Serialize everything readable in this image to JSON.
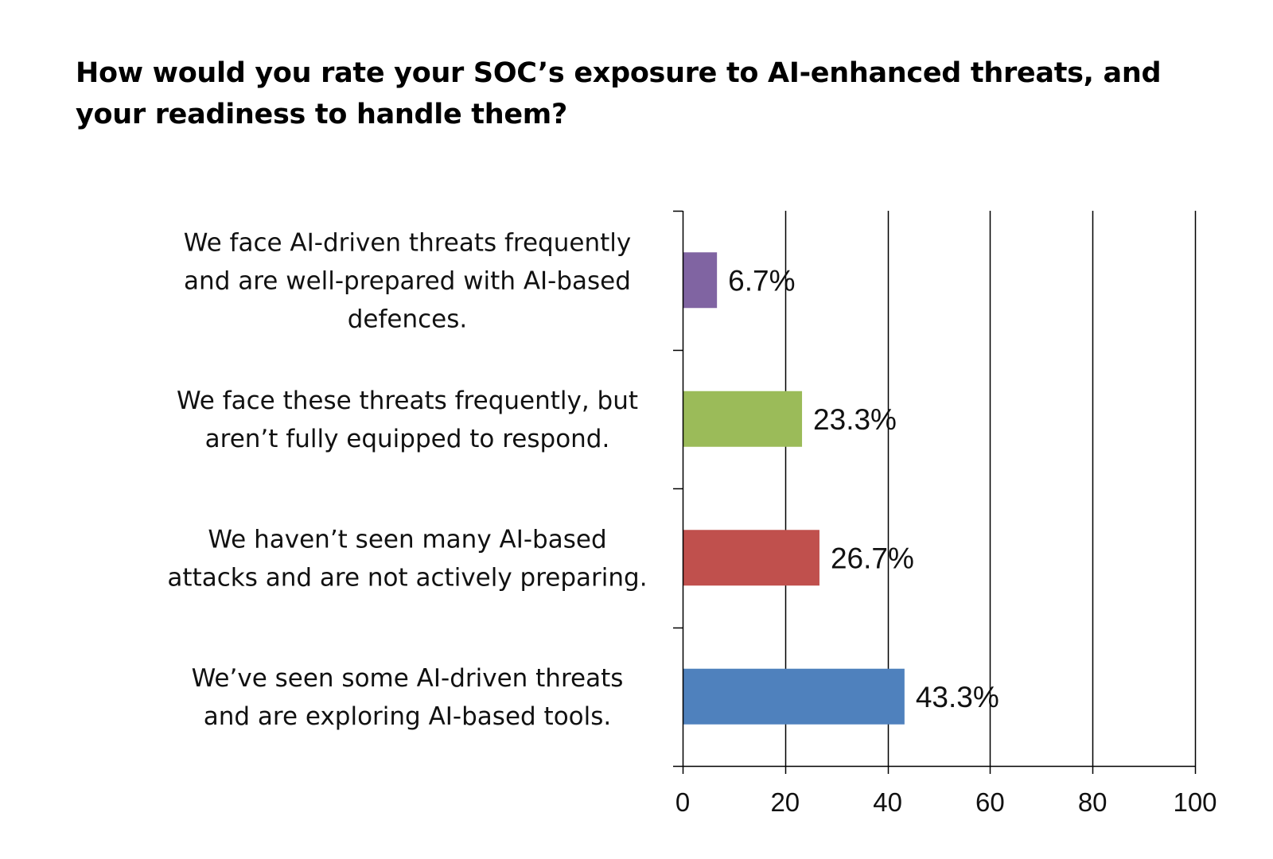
{
  "chart_data": {
    "type": "bar",
    "orientation": "horizontal",
    "title": "How would you rate your SOC’s exposure to AI-enhanced threats, and your readiness to handle them?",
    "categories": [
      [
        "We face AI-driven threats frequently",
        "and are well-prepared with AI-based",
        "defences."
      ],
      [
        "We face these threats frequently, but",
        "aren’t fully equipped to respond."
      ],
      [
        "We haven’t seen many AI-based",
        "attacks and are not actively preparing."
      ],
      [
        "We’ve seen some AI-driven threats",
        "and are exploring AI-based tools."
      ]
    ],
    "values": [
      6.7,
      23.3,
      26.7,
      43.3
    ],
    "data_labels": [
      "6.7%",
      "23.3%",
      "26.7%",
      "43.3%"
    ],
    "colors": [
      "#8064A2",
      "#9BBB59",
      "#C0504D",
      "#4F81BD"
    ],
    "xlim": [
      0,
      100
    ],
    "xticks": [
      0,
      20,
      40,
      60,
      80,
      100
    ],
    "tick_labels": [
      "0",
      "20",
      "40",
      "60",
      "80",
      "100"
    ],
    "grid": "vertical",
    "legend": "none"
  }
}
